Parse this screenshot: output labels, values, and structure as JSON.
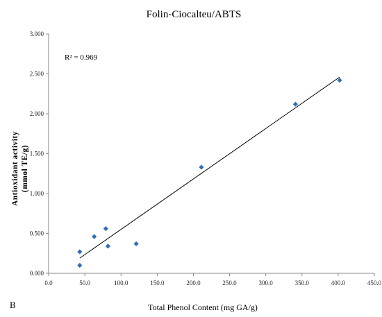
{
  "chart_data": {
    "type": "scatter",
    "title": "Folin-Ciocalteu/ABTS",
    "xlabel": "Total Phenol Content (mg GA/g)",
    "ylabel_line1": "Antioxidant activity",
    "ylabel_line2": "(mmol TE/g)",
    "panel_label": "B",
    "annotation": "R² = 0.969",
    "xlim": [
      0,
      450
    ],
    "ylim": [
      0,
      3
    ],
    "x_ticks": [
      "0.0",
      "50.0",
      "100.0",
      "150.0",
      "200.0",
      "250.0",
      "300.0",
      "350.0",
      "400.0",
      "450.0"
    ],
    "y_ticks": [
      "0.000",
      "0.500",
      "1.000",
      "1.500",
      "2.000",
      "2.500",
      "3.000"
    ],
    "points": [
      {
        "x": 43,
        "y": 0.27
      },
      {
        "x": 43,
        "y": 0.1
      },
      {
        "x": 63,
        "y": 0.46
      },
      {
        "x": 79,
        "y": 0.56
      },
      {
        "x": 82,
        "y": 0.34
      },
      {
        "x": 121,
        "y": 0.37
      },
      {
        "x": 211,
        "y": 1.33
      },
      {
        "x": 341,
        "y": 2.12
      },
      {
        "x": 402,
        "y": 2.42
      }
    ],
    "trendline": {
      "x": [
        43,
        402
      ],
      "y": [
        0.19,
        2.46
      ]
    },
    "marker_color": "#2e6fb7",
    "line_color": "#000000",
    "grid": false,
    "legend": "none"
  }
}
